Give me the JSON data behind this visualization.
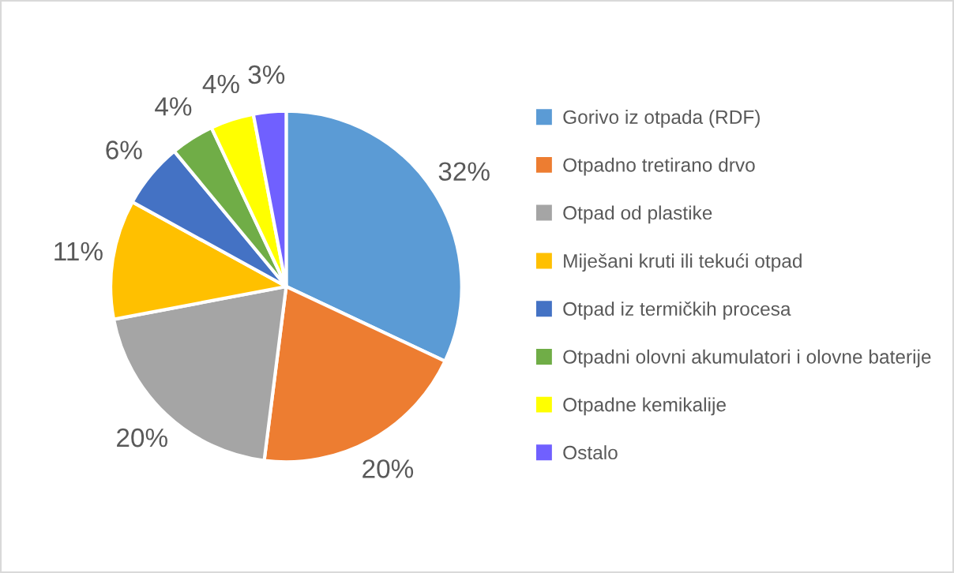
{
  "chart_data": {
    "type": "pie",
    "categories": [
      "Gorivo iz otpada (RDF)",
      "Otpadno tretirano drvo",
      "Otpad od plastike",
      "Miješani kruti ili tekući otpad",
      "Otpad iz termičkih procesa",
      "Otpadni olovni akumulatori i olovne baterije",
      "Otpadne kemikalije",
      "Ostalo"
    ],
    "values": [
      32,
      20,
      20,
      11,
      6,
      4,
      4,
      3
    ],
    "value_labels": [
      "32%",
      "20%",
      "20%",
      "11%",
      "6%",
      "4%",
      "4%",
      "3%"
    ],
    "colors": [
      "#5b9bd5",
      "#ed7d31",
      "#a5a5a5",
      "#ffc000",
      "#4472c4",
      "#70ad47",
      "#ffff00",
      "#7060ff"
    ],
    "legend": "right"
  }
}
